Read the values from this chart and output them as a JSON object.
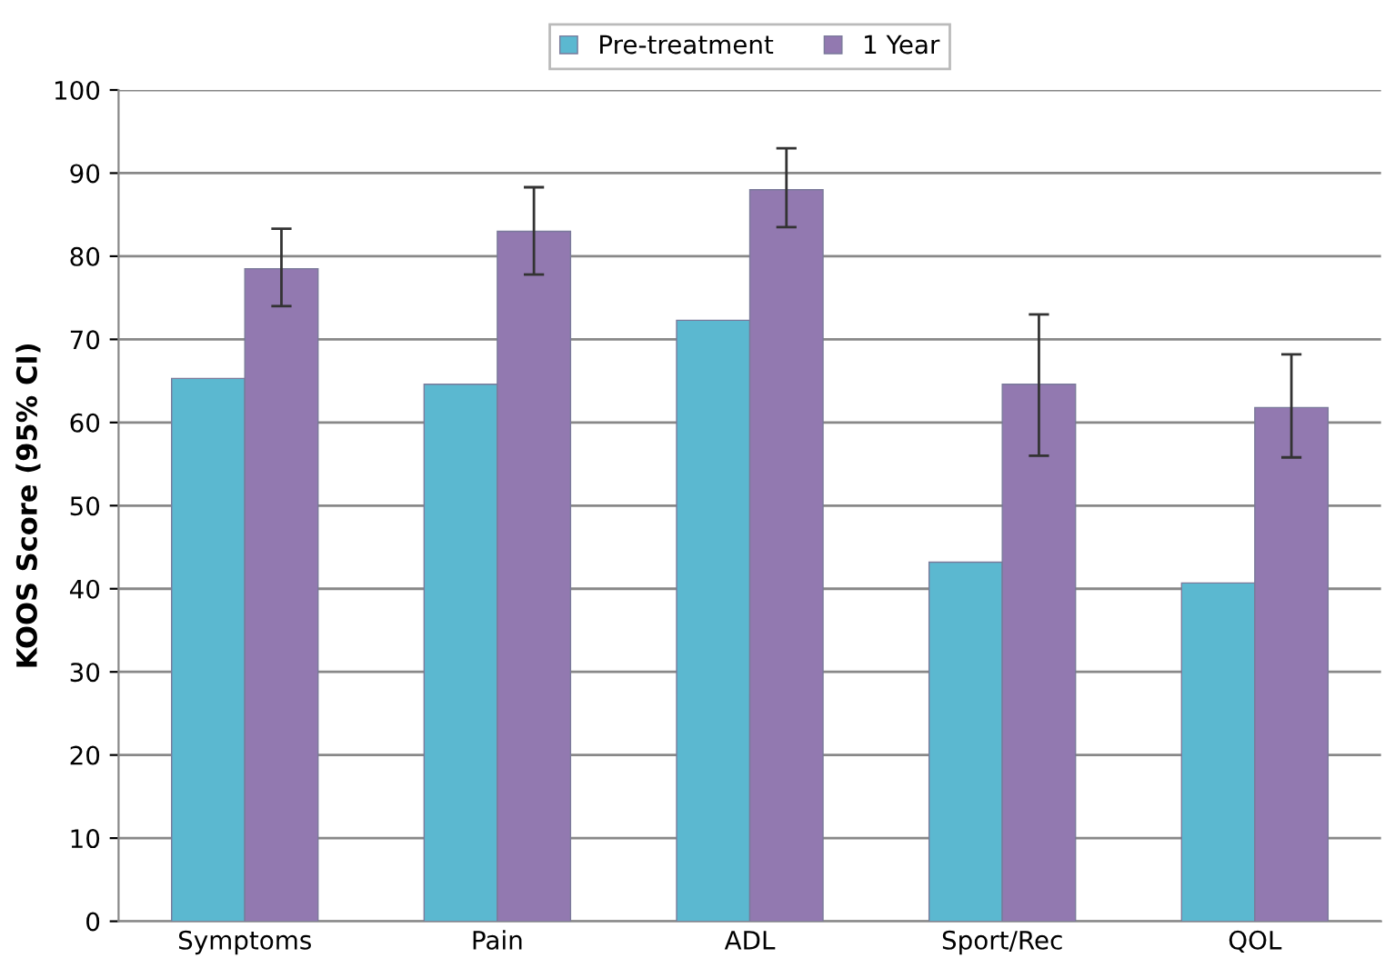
{
  "chart_data": {
    "type": "bar",
    "ylabel": "KOOS Score (95% CI)",
    "categories": [
      "Symptoms",
      "Pain",
      "ADL",
      "Sport/Rec",
      "QOL"
    ],
    "series": [
      {
        "name": "Pre-treatment",
        "color": "#5bb8d0",
        "values": [
          65.3,
          64.6,
          72.3,
          43.2,
          40.7
        ]
      },
      {
        "name": "1 Year",
        "color": "#9279b0",
        "values": [
          78.5,
          83,
          88,
          64.6,
          61.8
        ],
        "errors": [
          [
            74,
            83.3
          ],
          [
            77.8,
            88.3
          ],
          [
            83.5,
            93
          ],
          [
            56,
            73
          ],
          [
            55.8,
            68.2
          ]
        ]
      }
    ],
    "ylim": [
      0,
      100
    ],
    "yticks": [
      0,
      10,
      20,
      30,
      40,
      50,
      60,
      70,
      80,
      90,
      100
    ],
    "grid": "y",
    "legend": "top"
  }
}
